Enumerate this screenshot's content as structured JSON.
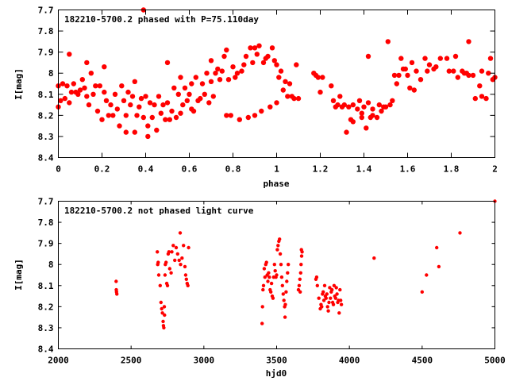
{
  "chart_data": [
    {
      "type": "scatter",
      "title": "182210-5700.2 phased with P=75.110day",
      "xlabel": "phase",
      "ylabel": "I[mag]",
      "xlim": [
        0,
        2
      ],
      "ylim": [
        8.4,
        7.7
      ],
      "y_inverted": true,
      "xticks": [
        "0",
        "0.2",
        "0.4",
        "0.6",
        "0.8",
        "1",
        "1.2",
        "1.4",
        "1.6",
        "1.8",
        "2"
      ],
      "xtick_values": [
        0,
        0.2,
        0.4,
        0.6,
        0.8,
        1.0,
        1.2,
        1.4,
        1.6,
        1.8,
        2.0
      ],
      "yticks": [
        "7.7",
        "7.8",
        "7.9",
        "8",
        "8.1",
        "8.2",
        "8.3",
        "8.4"
      ],
      "ytick_values": [
        7.7,
        7.8,
        7.9,
        8.0,
        8.1,
        8.2,
        8.3,
        8.4
      ],
      "grid": false,
      "marker_color": "#ff0000",
      "marker_size": 3.2,
      "points": [
        [
          0.0,
          8.06
        ],
        [
          0.0,
          8.16
        ],
        [
          0.01,
          8.13
        ],
        [
          0.02,
          8.05
        ],
        [
          0.03,
          8.12
        ],
        [
          0.04,
          8.06
        ],
        [
          0.05,
          8.14
        ],
        [
          0.05,
          7.91
        ],
        [
          0.06,
          8.09
        ],
        [
          0.07,
          8.05
        ],
        [
          0.08,
          8.09
        ],
        [
          0.09,
          8.1
        ],
        [
          0.1,
          8.08
        ],
        [
          0.11,
          8.03
        ],
        [
          0.12,
          8.07
        ],
        [
          0.13,
          8.11
        ],
        [
          0.13,
          7.95
        ],
        [
          0.14,
          8.15
        ],
        [
          0.15,
          8.0
        ],
        [
          0.16,
          8.1
        ],
        [
          0.17,
          8.06
        ],
        [
          0.18,
          8.18
        ],
        [
          0.19,
          8.06
        ],
        [
          0.2,
          8.22
        ],
        [
          0.21,
          8.09
        ],
        [
          0.21,
          7.97
        ],
        [
          0.22,
          8.13
        ],
        [
          0.23,
          8.2
        ],
        [
          0.24,
          8.15
        ],
        [
          0.25,
          8.2
        ],
        [
          0.26,
          8.1
        ],
        [
          0.27,
          8.17
        ],
        [
          0.28,
          8.25
        ],
        [
          0.29,
          8.06
        ],
        [
          0.3,
          8.13
        ],
        [
          0.31,
          8.2
        ],
        [
          0.31,
          8.28
        ],
        [
          0.32,
          8.09
        ],
        [
          0.33,
          8.15
        ],
        [
          0.34,
          8.11
        ],
        [
          0.35,
          8.04
        ],
        [
          0.35,
          8.28
        ],
        [
          0.36,
          8.2
        ],
        [
          0.37,
          8.16
        ],
        [
          0.38,
          8.12
        ],
        [
          0.39,
          7.7
        ],
        [
          0.39,
          8.21
        ],
        [
          0.4,
          8.11
        ],
        [
          0.41,
          8.25
        ],
        [
          0.41,
          8.3
        ],
        [
          0.42,
          8.14
        ],
        [
          0.43,
          8.21
        ],
        [
          0.44,
          8.15
        ],
        [
          0.45,
          8.27
        ],
        [
          0.46,
          8.11
        ],
        [
          0.47,
          8.19
        ],
        [
          0.48,
          8.15
        ],
        [
          0.49,
          8.22
        ],
        [
          0.5,
          7.95
        ],
        [
          0.5,
          8.14
        ],
        [
          0.51,
          8.22
        ],
        [
          0.52,
          8.18
        ],
        [
          0.53,
          8.07
        ],
        [
          0.54,
          8.21
        ],
        [
          0.55,
          8.1
        ],
        [
          0.56,
          8.02
        ],
        [
          0.56,
          8.19
        ],
        [
          0.57,
          8.15
        ],
        [
          0.58,
          8.07
        ],
        [
          0.59,
          8.13
        ],
        [
          0.6,
          8.1
        ],
        [
          0.61,
          8.17
        ],
        [
          0.61,
          8.05
        ],
        [
          0.62,
          8.18
        ],
        [
          0.63,
          8.02
        ],
        [
          0.64,
          8.13
        ],
        [
          0.65,
          8.12
        ],
        [
          0.66,
          8.05
        ],
        [
          0.67,
          8.1
        ],
        [
          0.68,
          8.0
        ],
        [
          0.69,
          8.14
        ],
        [
          0.7,
          8.04
        ],
        [
          0.7,
          7.94
        ],
        [
          0.71,
          8.11
        ],
        [
          0.72,
          8.0
        ],
        [
          0.73,
          7.98
        ],
        [
          0.74,
          8.03
        ],
        [
          0.75,
          7.99
        ],
        [
          0.76,
          7.92
        ],
        [
          0.77,
          8.2
        ],
        [
          0.77,
          7.89
        ],
        [
          0.78,
          8.03
        ],
        [
          0.79,
          8.2
        ],
        [
          0.8,
          7.97
        ],
        [
          0.81,
          8.02
        ],
        [
          0.82,
          8.0
        ],
        [
          0.83,
          8.22
        ],
        [
          0.84,
          7.99
        ],
        [
          0.85,
          7.96
        ],
        [
          0.86,
          7.92
        ],
        [
          0.87,
          8.21
        ],
        [
          0.88,
          7.88
        ],
        [
          0.89,
          7.95
        ],
        [
          0.9,
          8.2
        ],
        [
          0.9,
          7.88
        ],
        [
          0.91,
          7.91
        ],
        [
          0.92,
          7.87
        ],
        [
          0.93,
          8.18
        ],
        [
          0.94,
          7.95
        ],
        [
          0.95,
          7.93
        ],
        [
          0.96,
          7.92
        ],
        [
          0.97,
          8.16
        ],
        [
          0.98,
          7.88
        ],
        [
          0.99,
          7.94
        ],
        [
          1.0,
          8.14
        ],
        [
          1.0,
          7.96
        ],
        [
          1.01,
          8.02
        ],
        [
          1.02,
          7.99
        ],
        [
          1.03,
          8.08
        ],
        [
          1.04,
          8.04
        ],
        [
          1.05,
          8.11
        ],
        [
          1.06,
          8.05
        ],
        [
          1.07,
          8.11
        ],
        [
          1.08,
          8.12
        ],
        [
          1.09,
          7.96
        ],
        [
          1.1,
          8.12
        ],
        [
          1.17,
          8.0
        ],
        [
          1.18,
          8.01
        ],
        [
          1.19,
          8.02
        ],
        [
          1.2,
          8.09
        ],
        [
          1.21,
          8.02
        ],
        [
          1.25,
          8.06
        ],
        [
          1.26,
          8.13
        ],
        [
          1.27,
          8.16
        ],
        [
          1.28,
          8.15
        ],
        [
          1.29,
          8.11
        ],
        [
          1.3,
          8.16
        ],
        [
          1.31,
          8.15
        ],
        [
          1.32,
          8.28
        ],
        [
          1.33,
          8.16
        ],
        [
          1.34,
          8.22
        ],
        [
          1.35,
          8.15
        ],
        [
          1.35,
          8.23
        ],
        [
          1.37,
          8.17
        ],
        [
          1.38,
          8.13
        ],
        [
          1.39,
          8.19
        ],
        [
          1.39,
          8.21
        ],
        [
          1.4,
          8.16
        ],
        [
          1.41,
          8.26
        ],
        [
          1.42,
          8.14
        ],
        [
          1.42,
          7.92
        ],
        [
          1.43,
          8.21
        ],
        [
          1.44,
          8.2
        ],
        [
          1.44,
          8.17
        ],
        [
          1.46,
          8.21
        ],
        [
          1.47,
          8.15
        ],
        [
          1.48,
          8.18
        ],
        [
          1.49,
          8.16
        ],
        [
          1.5,
          8.16
        ],
        [
          1.51,
          7.85
        ],
        [
          1.52,
          8.15
        ],
        [
          1.53,
          8.13
        ],
        [
          1.54,
          8.01
        ],
        [
          1.55,
          8.05
        ],
        [
          1.56,
          8.01
        ],
        [
          1.57,
          7.93
        ],
        [
          1.58,
          7.98
        ],
        [
          1.59,
          7.98
        ],
        [
          1.6,
          8.01
        ],
        [
          1.61,
          8.07
        ],
        [
          1.62,
          7.95
        ],
        [
          1.63,
          8.08
        ],
        [
          1.64,
          7.99
        ],
        [
          1.66,
          8.03
        ],
        [
          1.68,
          7.93
        ],
        [
          1.69,
          7.99
        ],
        [
          1.7,
          7.96
        ],
        [
          1.72,
          7.98
        ],
        [
          1.73,
          7.97
        ],
        [
          1.75,
          7.93
        ],
        [
          1.78,
          7.93
        ],
        [
          1.79,
          7.99
        ],
        [
          1.81,
          7.99
        ],
        [
          1.82,
          7.92
        ],
        [
          1.83,
          8.02
        ],
        [
          1.85,
          7.99
        ],
        [
          1.86,
          8.0
        ],
        [
          1.87,
          8.0
        ],
        [
          1.88,
          8.01
        ],
        [
          1.88,
          7.85
        ],
        [
          1.9,
          8.01
        ],
        [
          1.91,
          8.12
        ],
        [
          1.93,
          8.06
        ],
        [
          1.94,
          8.11
        ],
        [
          1.94,
          7.99
        ],
        [
          1.96,
          8.12
        ],
        [
          1.97,
          8.0
        ],
        [
          1.98,
          7.93
        ],
        [
          1.99,
          8.03
        ],
        [
          2.0,
          8.02
        ]
      ]
    },
    {
      "type": "scatter",
      "title": "182210-5700.2 not phased light curve",
      "xlabel": "hjd0",
      "ylabel": "I[mag]",
      "xlim": [
        2000,
        5000
      ],
      "ylim": [
        8.4,
        7.7
      ],
      "y_inverted": true,
      "xticks": [
        "2000",
        "2500",
        "3000",
        "3500",
        "4000",
        "4500",
        "5000"
      ],
      "xtick_values": [
        2000,
        2500,
        3000,
        3500,
        4000,
        4500,
        5000
      ],
      "yticks": [
        "7.7",
        "7.8",
        "7.9",
        "8",
        "8.1",
        "8.2",
        "8.3",
        "8.4"
      ],
      "ytick_values": [
        7.7,
        7.8,
        7.9,
        8.0,
        8.1,
        8.2,
        8.3,
        8.4
      ],
      "grid": false,
      "marker_color": "#ff0000",
      "marker_size": 2.2,
      "points": [
        [
          2397,
          8.08
        ],
        [
          2398,
          8.12
        ],
        [
          2400,
          8.13
        ],
        [
          2402,
          8.14
        ],
        [
          2680,
          7.94
        ],
        [
          2683,
          8.0
        ],
        [
          2686,
          7.99
        ],
        [
          2690,
          8.05
        ],
        [
          2700,
          8.1
        ],
        [
          2705,
          8.18
        ],
        [
          2710,
          8.21
        ],
        [
          2715,
          8.23
        ],
        [
          2720,
          8.27
        ],
        [
          2722,
          8.29
        ],
        [
          2725,
          8.3
        ],
        [
          2728,
          8.2
        ],
        [
          2730,
          8.24
        ],
        [
          2733,
          8.05
        ],
        [
          2735,
          8.0
        ],
        [
          2740,
          7.99
        ],
        [
          2745,
          8.09
        ],
        [
          2750,
          8.1
        ],
        [
          2755,
          7.95
        ],
        [
          2760,
          7.94
        ],
        [
          2765,
          8.02
        ],
        [
          2775,
          8.04
        ],
        [
          2780,
          7.94
        ],
        [
          2790,
          7.91
        ],
        [
          2800,
          7.98
        ],
        [
          2810,
          7.92
        ],
        [
          2820,
          7.95
        ],
        [
          2830,
          7.98
        ],
        [
          2837,
          7.85
        ],
        [
          2840,
          8.0
        ],
        [
          2850,
          7.97
        ],
        [
          2860,
          7.91
        ],
        [
          2870,
          8.01
        ],
        [
          2875,
          8.05
        ],
        [
          2880,
          8.07
        ],
        [
          2885,
          8.09
        ],
        [
          2890,
          8.1
        ],
        [
          2895,
          7.92
        ],
        [
          3400,
          8.28
        ],
        [
          3403,
          8.2
        ],
        [
          3406,
          8.12
        ],
        [
          3410,
          8.1
        ],
        [
          3415,
          8.02
        ],
        [
          3420,
          8.06
        ],
        [
          3425,
          8.0
        ],
        [
          3430,
          7.99
        ],
        [
          3435,
          8.05
        ],
        [
          3440,
          8.08
        ],
        [
          3445,
          8.04
        ],
        [
          3450,
          8.06
        ],
        [
          3455,
          8.12
        ],
        [
          3460,
          8.13
        ],
        [
          3465,
          8.09
        ],
        [
          3470,
          8.15
        ],
        [
          3475,
          8.16
        ],
        [
          3480,
          8.06
        ],
        [
          3485,
          8.0
        ],
        [
          3490,
          8.03
        ],
        [
          3495,
          8.06
        ],
        [
          3500,
          8.05
        ],
        [
          3505,
          7.93
        ],
        [
          3510,
          7.91
        ],
        [
          3515,
          7.89
        ],
        [
          3520,
          7.88
        ],
        [
          3525,
          7.95
        ],
        [
          3530,
          8.0
        ],
        [
          3535,
          8.06
        ],
        [
          3540,
          8.1
        ],
        [
          3545,
          8.14
        ],
        [
          3550,
          8.17
        ],
        [
          3555,
          8.2
        ],
        [
          3558,
          8.25
        ],
        [
          3560,
          8.19
        ],
        [
          3565,
          8.13
        ],
        [
          3570,
          8.08
        ],
        [
          3575,
          8.04
        ],
        [
          3580,
          8.0
        ],
        [
          3650,
          8.12
        ],
        [
          3655,
          8.1
        ],
        [
          3660,
          8.07
        ],
        [
          3662,
          8.13
        ],
        [
          3665,
          8.04
        ],
        [
          3668,
          8.0
        ],
        [
          3670,
          7.93
        ],
        [
          3672,
          7.96
        ],
        [
          3675,
          7.94
        ],
        [
          3770,
          8.07
        ],
        [
          3775,
          8.06
        ],
        [
          3780,
          8.1
        ],
        [
          3790,
          8.16
        ],
        [
          3800,
          8.21
        ],
        [
          3805,
          8.19
        ],
        [
          3810,
          8.2
        ],
        [
          3815,
          8.14
        ],
        [
          3820,
          8.13
        ],
        [
          3825,
          8.17
        ],
        [
          3830,
          8.1
        ],
        [
          3835,
          8.15
        ],
        [
          3840,
          8.16
        ],
        [
          3845,
          8.14
        ],
        [
          3850,
          8.2
        ],
        [
          3855,
          8.22
        ],
        [
          3860,
          8.18
        ],
        [
          3865,
          8.11
        ],
        [
          3870,
          8.16
        ],
        [
          3875,
          8.13
        ],
        [
          3880,
          8.12
        ],
        [
          3885,
          8.18
        ],
        [
          3890,
          8.19
        ],
        [
          3895,
          8.1
        ],
        [
          3900,
          8.15
        ],
        [
          3905,
          8.16
        ],
        [
          3910,
          8.11
        ],
        [
          3915,
          8.14
        ],
        [
          3920,
          8.18
        ],
        [
          3925,
          8.17
        ],
        [
          3930,
          8.23
        ],
        [
          3935,
          8.12
        ],
        [
          3940,
          8.17
        ],
        [
          3945,
          8.19
        ],
        [
          4170,
          7.97
        ],
        [
          4500,
          8.13
        ],
        [
          4530,
          8.05
        ],
        [
          4600,
          7.92
        ],
        [
          4615,
          8.01
        ],
        [
          4760,
          7.85
        ],
        [
          5000,
          7.7
        ]
      ]
    }
  ]
}
